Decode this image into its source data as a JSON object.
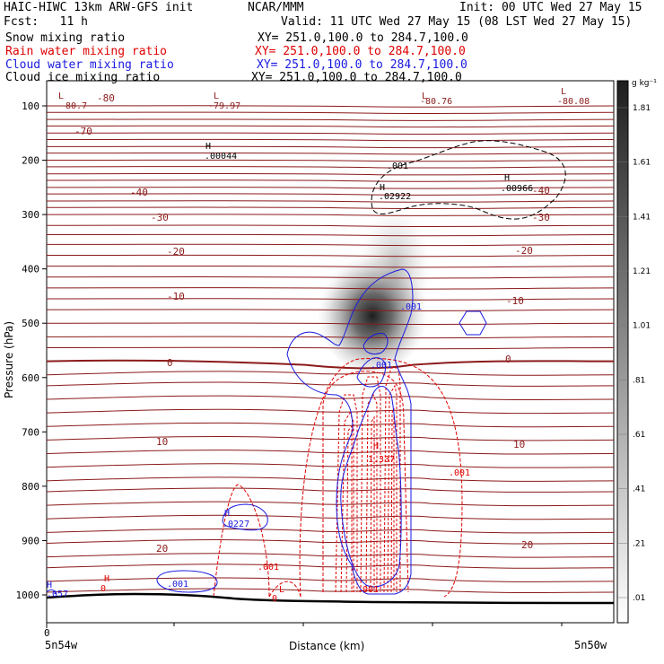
{
  "header": {
    "model": "HAIC-HIWC 13km ARW-GFS init",
    "org": "NCAR/MMM",
    "init": "Init: 00 UTC Wed 27 May 15",
    "fcst": "Fcst:   11 h",
    "valid": "Valid: 11 UTC Wed 27 May 15 (08 LST Wed 27 May 15)"
  },
  "fields": [
    {
      "label": "Snow mixing ratio",
      "xy": "XY= 251.0,100.0 to 284.7,100.0",
      "color": "#000000"
    },
    {
      "label": "Rain water mixing ratio",
      "xy": "XY= 251.0,100.0 to 284.7,100.0",
      "color": "#e00000"
    },
    {
      "label": "Cloud water mixing ratio",
      "xy": "XY= 251.0,100.0 to 284.7,100.0",
      "color": "#0000e0"
    },
    {
      "label": "Cloud ice mixing ratio",
      "xy": "XY= 251.0,100.0 to 284.7,100.0",
      "color": "#000000"
    }
  ],
  "colors": {
    "temperature": "#8b1a1a",
    "rain": "#e00000",
    "cloud_water": "#1a1ae0",
    "cloud_ice": "#000000",
    "terrain": "#000000"
  },
  "chart_data": {
    "type": "contour",
    "xlabel": "Distance (km)",
    "ylabel": "Pressure (hPa)",
    "ylim": [
      1050,
      50
    ],
    "y_ticks": [
      100,
      200,
      300,
      400,
      500,
      600,
      700,
      800,
      900,
      1000
    ],
    "x_tick_labels": [
      "0"
    ],
    "x_end_labels": [
      "5n54w",
      "5n50w"
    ],
    "colorbar": {
      "unit": "g kg⁻¹",
      "levels": [
        ".01",
        ".21",
        ".41",
        ".61",
        ".81",
        "1.01",
        "1.21",
        "1.41",
        "1.61",
        "1.81"
      ]
    },
    "temperature_labels": [
      {
        "text": "-80",
        "p": 100
      },
      {
        "text": "-70",
        "p": 148
      },
      {
        "text": "-40",
        "p": 225
      },
      {
        "text": "-30",
        "p": 268
      },
      {
        "text": "-20",
        "p": 355
      },
      {
        "text": "-20",
        "p": 350
      },
      {
        "text": "-10",
        "p": 445
      },
      {
        "text": "-10",
        "p": 450
      },
      {
        "text": "-40",
        "p": 225
      },
      {
        "text": "-30",
        "p": 270
      },
      {
        "text": "0",
        "p": 570
      },
      {
        "text": "0",
        "p": 565
      },
      {
        "text": "10",
        "p": 740
      },
      {
        "text": "10",
        "p": 745
      },
      {
        "text": "20",
        "p": 905
      },
      {
        "text": "20",
        "p": 900
      }
    ],
    "extrema_labels": [
      {
        "mark": "L",
        "value": "-80.7",
        "p": 100
      },
      {
        "mark": "L",
        "value": "-79.97",
        "p": 100
      },
      {
        "mark": "L",
        "value": "-80.76",
        "p": 100
      },
      {
        "mark": "L",
        "value": "-80.08",
        "p": 100
      },
      {
        "mark": "H",
        "value": ".00044",
        "p": 195
      },
      {
        "mark": "H",
        "value": ".02922",
        "p": 230
      },
      {
        "mark": "H",
        "value": ".00966",
        "p": 225
      },
      {
        "mark": "H",
        "value": ".0227",
        "p": 865
      },
      {
        "mark": "H",
        "value": "1.337",
        "p": 740
      },
      {
        "mark": "H",
        "value": "0",
        "p": 990
      },
      {
        "mark": "H",
        "value": ".057",
        "p": 1000
      },
      {
        "mark": "L",
        "value": "0",
        "p": 1005
      }
    ],
    "contour_labels": [
      {
        "text": ".001",
        "series": "cloud_ice"
      },
      {
        "text": ".001",
        "series": "cloud_water"
      },
      {
        "text": ".001",
        "series": "cloud_water"
      },
      {
        "text": ".001",
        "series": "rain"
      },
      {
        "text": ".001",
        "series": "rain"
      },
      {
        "text": ".001",
        "series": "cloud_water"
      },
      {
        "text": ".001",
        "series": "rain"
      }
    ],
    "series": [
      {
        "name": "Snow mixing ratio",
        "peak": 1.8
      },
      {
        "name": "Rain water mixing ratio",
        "peak": 1.337
      },
      {
        "name": "Cloud water mixing ratio"
      },
      {
        "name": "Cloud ice mixing ratio"
      }
    ]
  }
}
